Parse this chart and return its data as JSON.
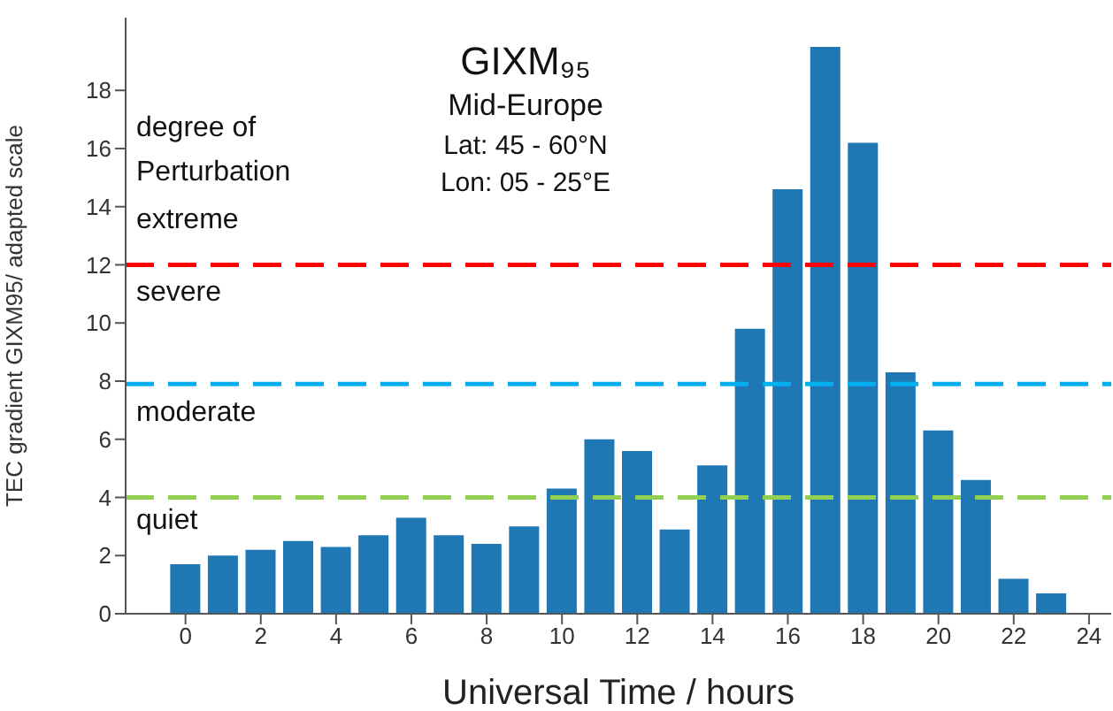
{
  "chart_data": {
    "type": "bar",
    "title": "GIXM₉₅",
    "subtitle": "Mid-Europe",
    "xlabel": "Universal Time / hours",
    "ylabel": "TEC gradient GIXM95/ adapted scale",
    "x": [
      0,
      1,
      2,
      3,
      4,
      5,
      6,
      7,
      8,
      9,
      10,
      11,
      12,
      13,
      14,
      15,
      16,
      17,
      18,
      19,
      20,
      21,
      22,
      23
    ],
    "values": [
      1.7,
      2.0,
      2.2,
      2.5,
      2.3,
      2.7,
      3.3,
      2.7,
      2.4,
      3.0,
      4.3,
      6.0,
      5.6,
      2.9,
      5.1,
      9.8,
      14.6,
      19.5,
      16.2,
      8.3,
      6.3,
      4.6,
      1.2,
      0.7
    ],
    "color": "#1f77b4",
    "xlim": [
      -1.59,
      24.59
    ],
    "xticks": [
      0,
      2,
      4,
      6,
      8,
      10,
      12,
      14,
      16,
      18,
      20,
      22,
      24
    ],
    "ylim": [
      0,
      20.5
    ],
    "yticks": [
      0,
      2,
      4,
      6,
      8,
      10,
      12,
      14,
      16,
      18
    ],
    "ref_lines": [
      {
        "axis": "y",
        "value": 12,
        "color": "#ff0000",
        "line_style": "dashed"
      },
      {
        "axis": "y",
        "value": 7.9,
        "color": "#00b0f0",
        "line_style": "dashed"
      },
      {
        "axis": "y",
        "value": 4,
        "color": "#92d050",
        "line_style": "dashed"
      }
    ],
    "annotations": [
      "Lat: 45 - 60°N",
      "Lon: 05 - 25°E",
      "degree of",
      "Perturbation",
      "extreme",
      "severe",
      "moderate",
      "quiet"
    ]
  }
}
